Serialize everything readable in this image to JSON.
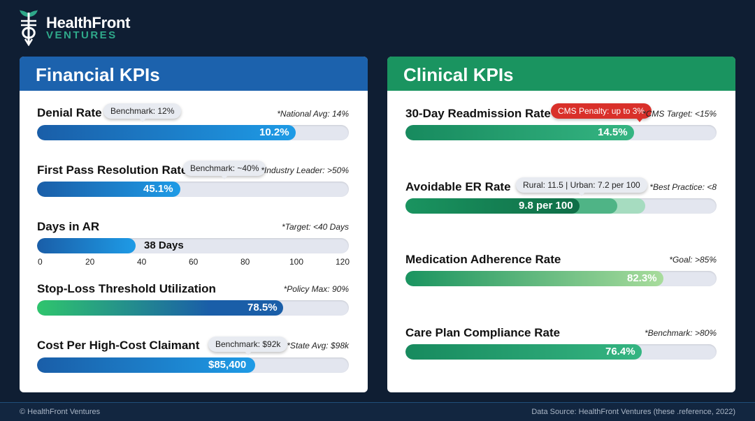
{
  "brand": {
    "name": "HealthFront",
    "sub": "VENTURES"
  },
  "financial": {
    "title": "Financial KPIs",
    "accent": "#1c62ad",
    "denial": {
      "label": "Denial Rate",
      "tooltip": "Benchmark: 12%",
      "note": "*National Avg: 14%",
      "value": "10.2%",
      "fill": 0.83
    },
    "fpr": {
      "label": "First Pass Resolution Rate",
      "tooltip": "Benchmark: ~40%",
      "note": "*Industry Leader: >50%",
      "value": "45.1%",
      "fill": 0.46
    },
    "ar": {
      "label": "Days in AR",
      "note": "*Target: <40 Days",
      "value": "38 Days",
      "fill": 0.3167,
      "ticks": [
        "0",
        "20",
        "40",
        "60",
        "80",
        "100",
        "120"
      ]
    },
    "stoploss": {
      "label": "Stop-Loss Threshold Utilization",
      "note": "*Policy Max: 90%",
      "value": "78.5%",
      "fill": 0.79
    },
    "cost": {
      "label": "Cost Per High-Cost Claimant",
      "tooltip": "Benchmark: $92k",
      "note": "*State Avg: $98k",
      "value": "$85,400",
      "fill": 0.7
    }
  },
  "clinical": {
    "title": "Clinical KPIs",
    "accent": "#1a9460",
    "readmit": {
      "label": "30-Day Readmission Rate",
      "tooltip": "CMS Penalty: up to 3%",
      "note": "*CMS Target: <15%",
      "value": "14.5%",
      "fill": 0.735
    },
    "er": {
      "label": "Avoidable ER Rate",
      "tooltip": "Rural: 11.5 | Urban: 7.2 per 100",
      "note": "*Best Practice: <8",
      "value": "9.8 per 100",
      "fill": 0.56,
      "fill_mid": 0.68,
      "fill_light": 0.77
    },
    "med": {
      "label": "Medication Adherence Rate",
      "note": "*Goal: >85%",
      "value": "82.3%",
      "fill": 0.83
    },
    "care": {
      "label": "Care Plan Compliance Rate",
      "note": "*Benchmark: >80%",
      "value": "76.4%",
      "fill": 0.76
    }
  },
  "footer": {
    "left": "© HealthFront Ventures",
    "right": "Data Source: HealthFront Ventures (these .reference, 2022)"
  }
}
